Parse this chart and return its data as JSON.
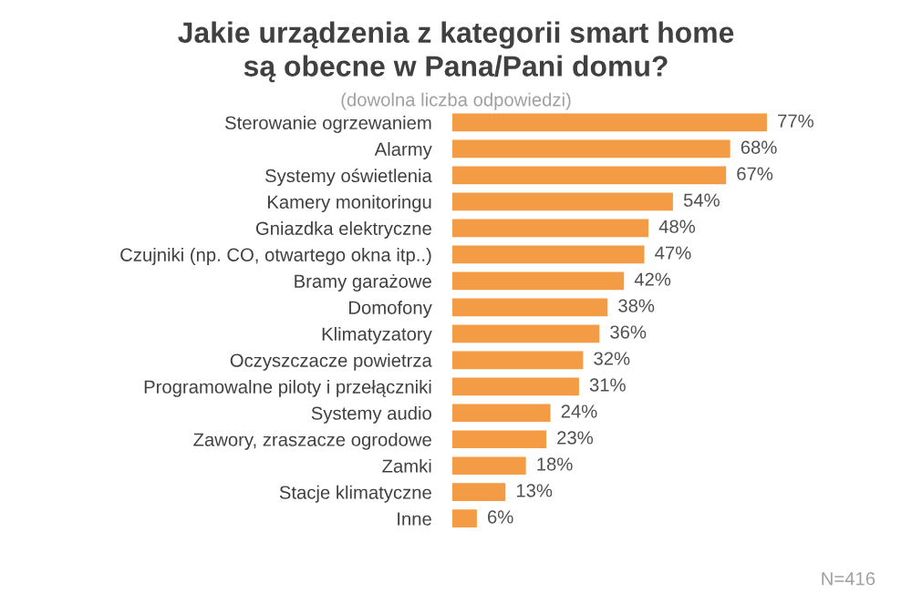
{
  "chart_data": {
    "type": "bar",
    "orientation": "horizontal",
    "title": "Jakie urządzenia z kategorii smart home\nsą obecne w Pana/Pani domu?",
    "subtitle": "(dowolna liczba odpowiedzi)",
    "categories": [
      "Sterowanie ogrzewaniem",
      "Alarmy",
      "Systemy oświetlenia",
      "Kamery monitoringu",
      "Gniazdka elektryczne",
      "Czujniki (np. CO, otwartego okna itp..)",
      "Bramy garażowe",
      "Domofony",
      "Klimatyzatory",
      "Oczyszczacze powietrza",
      "Programowalne piloty i przełączniki",
      "Systemy audio",
      "Zawory, zraszacze ogrodowe",
      "Zamki",
      "Stacje klimatyczne",
      "Inne"
    ],
    "values": [
      77,
      68,
      67,
      54,
      48,
      47,
      42,
      38,
      36,
      32,
      31,
      24,
      23,
      18,
      13,
      6
    ],
    "value_labels": [
      "77%",
      "68%",
      "67%",
      "54%",
      "48%",
      "47%",
      "42%",
      "38%",
      "36%",
      "32%",
      "31%",
      "24%",
      "23%",
      "18%",
      "13%",
      "6%"
    ],
    "color": "#f39c45",
    "annotations": [
      "N=416"
    ]
  }
}
